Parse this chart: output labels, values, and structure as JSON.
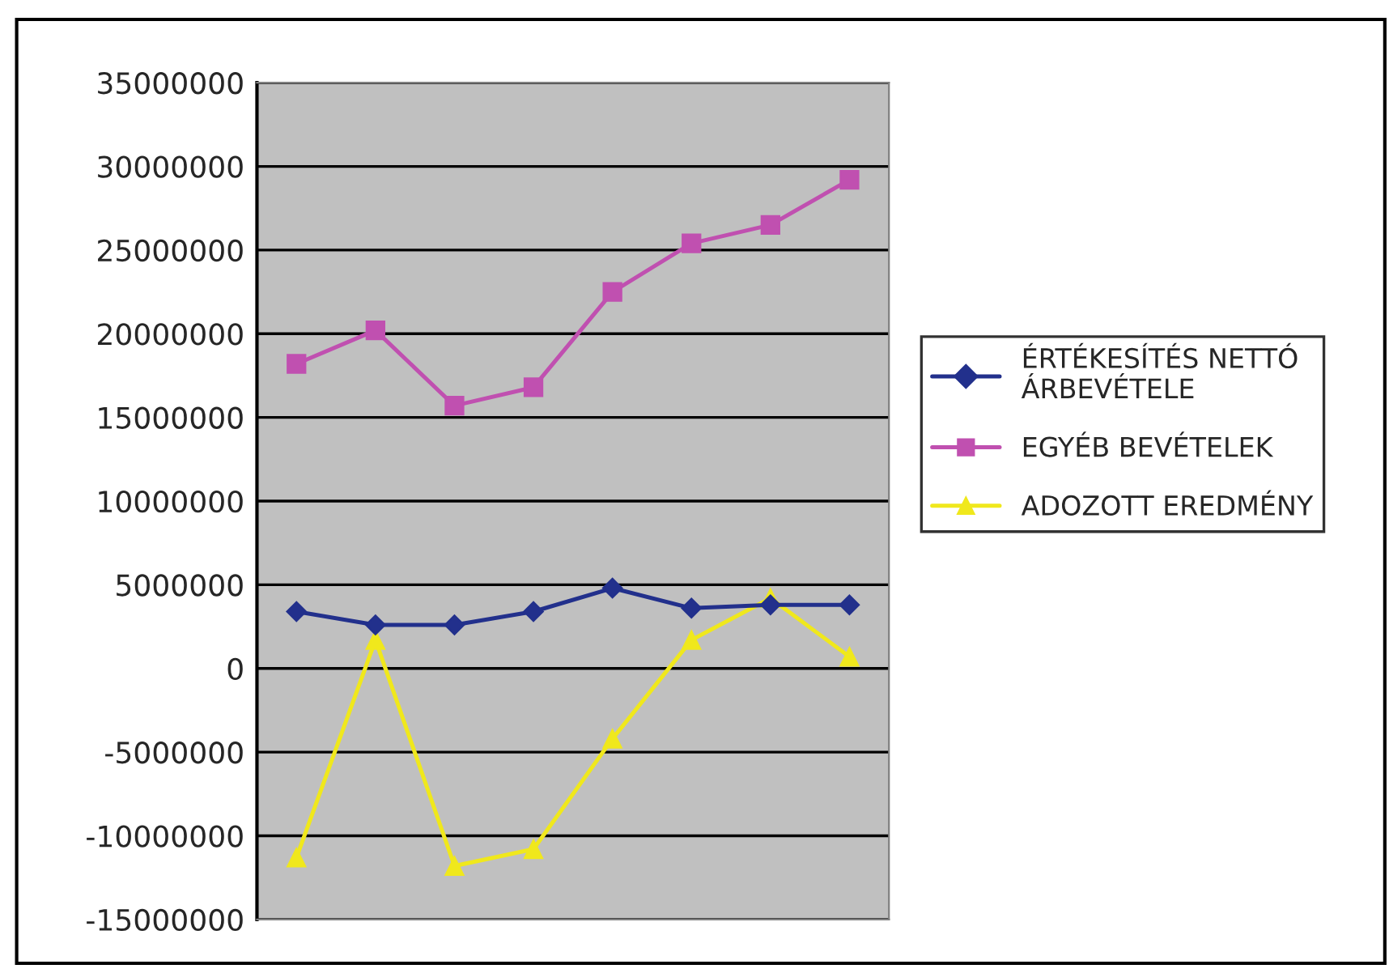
{
  "chart_data": {
    "type": "line",
    "categories": [
      null,
      null,
      null,
      null,
      null,
      null,
      null,
      null
    ],
    "series": [
      {
        "name": "ÉRTÉKESÍTÉS NETTÓ\nÁRBEVÉTELE",
        "color": "#22308c",
        "marker": "diamond",
        "values": [
          3400000,
          2600000,
          2600000,
          3400000,
          4800000,
          3600000,
          3800000,
          3800000
        ]
      },
      {
        "name": "EGYÉB BEVÉTELEK",
        "color": "#c050b0",
        "marker": "square",
        "values": [
          18200000,
          20200000,
          15700000,
          16800000,
          22500000,
          25400000,
          26500000,
          29200000
        ]
      },
      {
        "name": "ADOZOTT EREDMÉNY",
        "color": "#f0e81c",
        "marker": "triangle",
        "values": [
          -11300000,
          1700000,
          -11800000,
          -10800000,
          -4200000,
          1700000,
          4200000,
          700000
        ]
      }
    ],
    "ylim": [
      -15000000,
      35000000
    ],
    "yticks": [
      -15000000,
      -10000000,
      -5000000,
      0,
      5000000,
      10000000,
      15000000,
      20000000,
      25000000,
      30000000,
      35000000
    ],
    "grid": "y",
    "legend": "right"
  }
}
